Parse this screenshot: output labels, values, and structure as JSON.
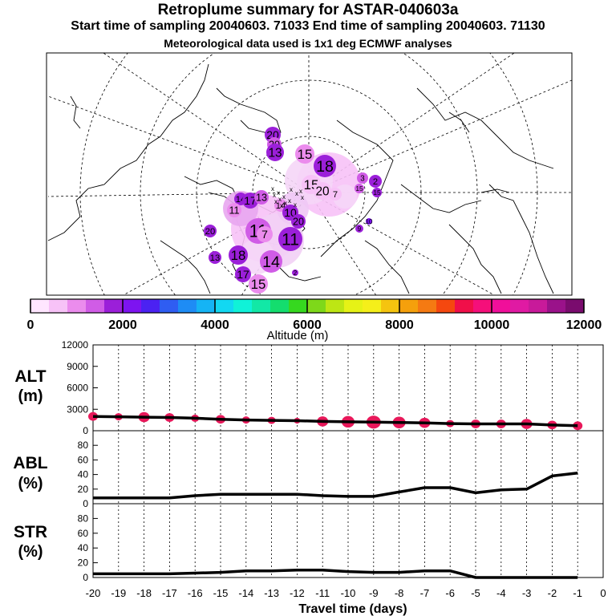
{
  "header": {
    "title": "Retroplume summary for ASTAR-040603a",
    "sampling": "Start time of sampling 20040603. 71033     End time of sampling 20040603. 71130",
    "met": "Meteorological data used is 1x1 deg ECMWF analyses"
  },
  "map": {
    "labels": [
      "20",
      "20",
      "13",
      "15",
      "18",
      "15",
      "20",
      "7",
      "3",
      "2",
      "15",
      "15",
      "14",
      "17",
      "13",
      "14",
      "11",
      "10",
      "20",
      "11",
      "7",
      "11",
      "20",
      "9",
      "2",
      "13",
      "18",
      "14",
      "17",
      "15",
      "10"
    ]
  },
  "colorbar": {
    "colors": [
      "#ffe6ff",
      "#f7c2f7",
      "#eb8ced",
      "#d05ce6",
      "#9b1fd9",
      "#7d14f0",
      "#4b22f2",
      "#2f5df2",
      "#1e8cf5",
      "#15b4f5",
      "#12d8f2",
      "#10f2d8",
      "#12e8a6",
      "#14dd6e",
      "#36d81f",
      "#7ed81a",
      "#bde614",
      "#e6f216",
      "#f5ef1a",
      "#f5c40f",
      "#f5a00c",
      "#f57a12",
      "#f5480f",
      "#f00f49",
      "#f50f7a",
      "#f00f9a",
      "#e01aa3",
      "#c81a9a",
      "#9a128a",
      "#7a0c6e"
    ],
    "tick_labels": [
      "0",
      "2000",
      "4000",
      "6000",
      "8000",
      "10000",
      "12000"
    ],
    "label": "Altitude (m)"
  },
  "panels": {
    "alt_label": "ALT",
    "alt_unit": "(m)",
    "abl_label": "ABL",
    "abl_unit": "(%)",
    "str_label": "STR",
    "str_unit": "(%)",
    "xlabel": "Travel time (days)"
  },
  "chart_data": {
    "type": "line",
    "x": [
      -20,
      -19,
      -18,
      -17,
      -16,
      -15,
      -14,
      -13,
      -12,
      -11,
      -10,
      -9,
      -8,
      -7,
      -6,
      -5,
      -4,
      -3,
      -2,
      -1
    ],
    "xlim": [
      -20,
      0
    ],
    "xticks": [
      "-20",
      "-19",
      "-18",
      "-17",
      "-16",
      "-15",
      "-14",
      "-13",
      "-12",
      "-11",
      "-10",
      "-9",
      "-8",
      "-7",
      "-6",
      "-5",
      "-4",
      "-3",
      "-2",
      "-1",
      "0"
    ],
    "xlabel": "Travel time (days)",
    "series": [
      {
        "name": "ALT",
        "unit": "m",
        "ylim": [
          0,
          12000
        ],
        "yticks": [
          "0",
          "3000",
          "6000",
          "9000",
          "12000"
        ],
        "values": [
          2000,
          1950,
          1900,
          1850,
          1750,
          1600,
          1500,
          1450,
          1400,
          1300,
          1250,
          1200,
          1150,
          1100,
          1000,
          950,
          950,
          950,
          800,
          700
        ],
        "marker_color": "#e8185a"
      },
      {
        "name": "ABL",
        "unit": "%",
        "ylim": [
          0,
          100
        ],
        "yticks": [
          "0",
          "20",
          "40",
          "60",
          "80"
        ],
        "values": [
          8,
          8,
          8,
          8,
          11,
          13,
          13,
          13,
          13,
          11,
          10,
          10,
          16,
          22,
          22,
          15,
          19,
          20,
          38,
          42
        ]
      },
      {
        "name": "STR",
        "unit": "%",
        "ylim": [
          0,
          100
        ],
        "yticks": [
          "0",
          "20",
          "40",
          "60",
          "80"
        ],
        "values": [
          5,
          5,
          5,
          5,
          6,
          7,
          9,
          9,
          10,
          10,
          8,
          7,
          7,
          9,
          9,
          0,
          0,
          0,
          0,
          0
        ]
      }
    ]
  }
}
